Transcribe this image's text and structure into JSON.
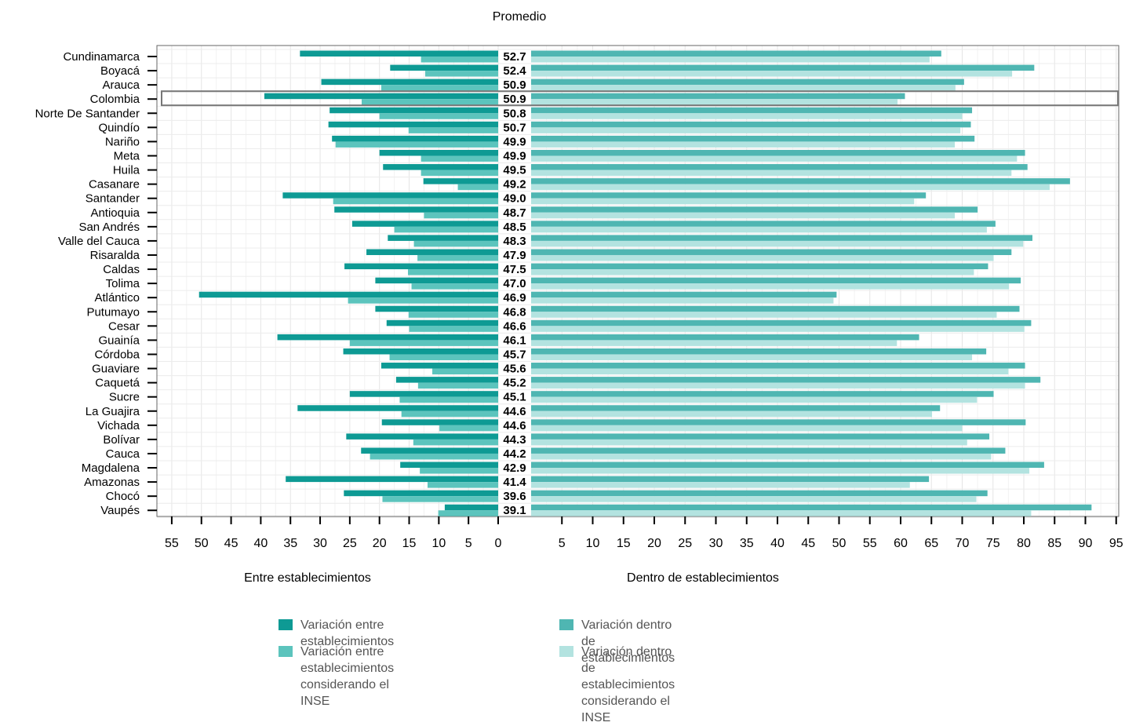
{
  "chart_data": {
    "type": "bar",
    "title": "Promedio",
    "left_axis_label": "Entre establecimientos",
    "right_axis_label": "Dentro de establecimientos",
    "left_ticks": [
      55,
      50,
      45,
      40,
      35,
      30,
      25,
      20,
      15,
      10,
      5,
      0
    ],
    "right_ticks": [
      5,
      10,
      15,
      20,
      25,
      30,
      35,
      40,
      45,
      50,
      55,
      60,
      65,
      70,
      75,
      80,
      85,
      90,
      95
    ],
    "highlighted_category": "Colombia",
    "grid": true,
    "legend_position": "bottom",
    "categories": [
      "Cundinamarca",
      "Boyacá",
      "Arauca",
      "Colombia",
      "Norte De Santander",
      "Quindío",
      "Nariño",
      "Meta",
      "Huila",
      "Casanare",
      "Santander",
      "Antioquia",
      "San Andrés",
      "Valle del Cauca",
      "Risaralda",
      "Caldas",
      "Tolima",
      "Atlántico",
      "Putumayo",
      "Cesar",
      "Guainía",
      "Córdoba",
      "Guaviare",
      "Caquetá",
      "Sucre",
      "La Guajira",
      "Vichada",
      "Bolívar",
      "Cauca",
      "Magdalena",
      "Amazonas",
      "Chocó",
      "Vaupés"
    ],
    "averages": [
      "52.7",
      "52.4",
      "50.9",
      "50.9",
      "50.8",
      "50.7",
      "49.9",
      "49.9",
      "49.5",
      "49.2",
      "49.0",
      "48.7",
      "48.5",
      "48.3",
      "47.9",
      "47.5",
      "47.0",
      "46.9",
      "46.8",
      "46.6",
      "46.1",
      "45.7",
      "45.6",
      "45.2",
      "45.1",
      "44.6",
      "44.6",
      "44.3",
      "44.2",
      "42.9",
      "41.4",
      "39.6",
      "39.1"
    ],
    "series": [
      {
        "name": "Variación entre establecimientos",
        "side": "left",
        "color": "#0e9a94",
        "values": [
          33.4,
          18.2,
          29.8,
          39.4,
          28.4,
          28.6,
          28.0,
          20.0,
          19.4,
          12.6,
          36.3,
          27.6,
          24.6,
          18.6,
          22.2,
          25.9,
          20.7,
          50.4,
          20.7,
          18.8,
          37.2,
          26.1,
          19.7,
          17.2,
          25.0,
          33.8,
          19.6,
          25.6,
          23.1,
          16.5,
          35.8,
          26.0,
          9.0
        ]
      },
      {
        "name": "Variación entre establecimientos considerando el INSE",
        "side": "left",
        "color": "#5cc4bd",
        "values": [
          13.0,
          12.3,
          19.7,
          23.0,
          20.0,
          15.1,
          27.4,
          13.0,
          13.0,
          6.8,
          27.8,
          12.5,
          17.5,
          14.2,
          13.6,
          15.2,
          14.6,
          25.3,
          15.1,
          15.0,
          25.0,
          18.3,
          11.1,
          13.5,
          16.6,
          16.3,
          9.9,
          14.3,
          21.6,
          13.2,
          11.9,
          19.5,
          10.1
        ]
      },
      {
        "name": "Variación dentro de establecimientos",
        "side": "right",
        "color": "#4fb6b2",
        "values": [
          66.6,
          81.7,
          70.3,
          60.7,
          71.6,
          71.4,
          72.0,
          80.2,
          80.6,
          87.5,
          64.1,
          72.5,
          75.4,
          81.4,
          78.0,
          74.2,
          79.5,
          49.6,
          79.3,
          81.2,
          63.0,
          73.9,
          80.2,
          82.7,
          75.1,
          66.4,
          80.3,
          74.4,
          77.0,
          83.3,
          64.6,
          74.1,
          91.0
        ]
      },
      {
        "name": "Variación dentro de establecimientos considerando el INSE",
        "side": "right",
        "color": "#b3e3e0",
        "values": [
          64.7,
          78.1,
          68.9,
          59.5,
          70.0,
          69.7,
          68.8,
          78.9,
          78.0,
          84.2,
          62.2,
          68.8,
          74.0,
          79.9,
          75.1,
          71.9,
          77.6,
          49.1,
          75.6,
          80.1,
          59.4,
          71.6,
          77.5,
          80.2,
          72.4,
          65.1,
          70.0,
          70.8,
          74.7,
          80.9,
          61.5,
          72.3,
          81.2
        ]
      }
    ]
  },
  "legend": [
    {
      "label": "Variación entre establecimientos",
      "color": "#0e9a94"
    },
    {
      "label": "Variación dentro de establecimientos",
      "color": "#4fb6b2"
    },
    {
      "label": "Variación entre establecimientos\nconsiderando el INSE",
      "color": "#5cc4bd"
    },
    {
      "label": "Variación dentro de establecimientos\nconsiderando el INSE",
      "color": "#b3e3e0"
    }
  ]
}
